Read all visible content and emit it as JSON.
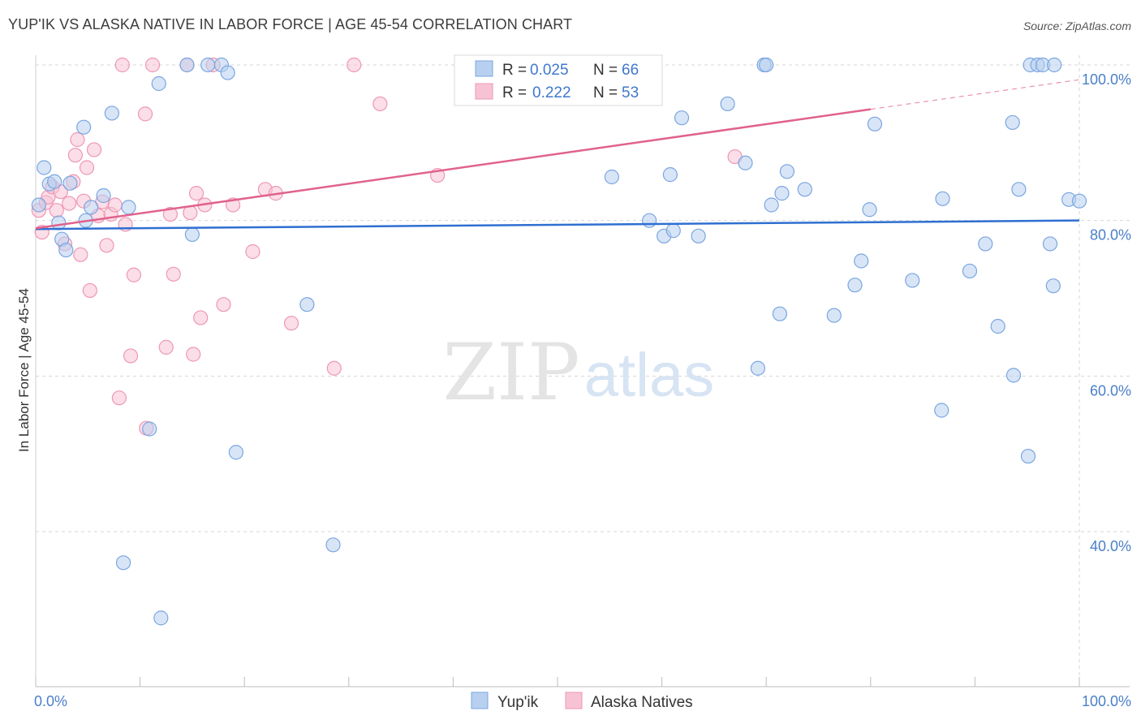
{
  "title": "YUP'IK VS ALASKA NATIVE IN LABOR FORCE | AGE 45-54 CORRELATION CHART",
  "source": "Source: ZipAtlas.com",
  "watermark": {
    "zip": "ZIP",
    "atlas": "atlas"
  },
  "colors": {
    "blue_fill": "#b8d0f0",
    "blue_stroke": "#7aa6e0",
    "blue_line": "#2f6fd1",
    "pink_fill": "#f7c3d4",
    "pink_stroke": "#ee97b3",
    "pink_line": "#e0628e",
    "grid": "#d6d6d6",
    "tick_text": "#4a7fc9"
  },
  "legend": {
    "rows": [
      {
        "r_label": "R =",
        "r_value": "0.025",
        "n_label": "N =",
        "n_value": "66"
      },
      {
        "r_label": "R =",
        "r_value": "0.222",
        "n_label": "N =",
        "n_value": "53"
      }
    ]
  },
  "bottom_legend": [
    "Yup'ik",
    "Alaska Natives"
  ],
  "chart_data": {
    "type": "scatter",
    "title": "YUP'IK VS ALASKA NATIVE IN LABOR FORCE | AGE 45-54 CORRELATION CHART",
    "xlabel": "",
    "ylabel": "In Labor Force | Age 45-54",
    "xlim": [
      0,
      105
    ],
    "ylim": [
      20,
      102.5
    ],
    "x_tick_labels": [
      "0.0%",
      "100.0%"
    ],
    "y_ticks": [
      40,
      60,
      80,
      100
    ],
    "y_tick_labels": [
      "40.0%",
      "60.0%",
      "80.0%",
      "100.0%"
    ],
    "grid": true,
    "legend_position": "top-center",
    "series": [
      {
        "name": "Yup'ik",
        "r": 0.025,
        "n": 66,
        "trend": {
          "x": [
            0,
            100
          ],
          "y": [
            78.9,
            80.0
          ]
        },
        "points": [
          [
            0.3,
            82.0
          ],
          [
            0.8,
            86.8
          ],
          [
            1.3,
            84.7
          ],
          [
            1.8,
            85.0
          ],
          [
            2.2,
            79.7
          ],
          [
            2.5,
            77.6
          ],
          [
            2.9,
            76.2
          ],
          [
            3.3,
            84.8
          ],
          [
            4.6,
            92.0
          ],
          [
            4.8,
            80.0
          ],
          [
            5.3,
            81.7
          ],
          [
            6.5,
            83.2
          ],
          [
            7.3,
            93.8
          ],
          [
            8.4,
            36.0
          ],
          [
            8.9,
            81.7
          ],
          [
            10.9,
            53.2
          ],
          [
            11.8,
            97.6
          ],
          [
            12.0,
            28.9
          ],
          [
            14.5,
            100.0
          ],
          [
            15.0,
            78.2
          ],
          [
            16.5,
            100.0
          ],
          [
            17.8,
            100.0
          ],
          [
            18.4,
            99.0
          ],
          [
            19.2,
            50.2
          ],
          [
            26.0,
            69.2
          ],
          [
            28.5,
            38.3
          ],
          [
            55.2,
            85.6
          ],
          [
            58.8,
            80.0
          ],
          [
            60.2,
            78.0
          ],
          [
            60.8,
            85.9
          ],
          [
            61.1,
            78.7
          ],
          [
            61.9,
            93.2
          ],
          [
            63.5,
            78.0
          ],
          [
            66.3,
            95.0
          ],
          [
            68.0,
            87.4
          ],
          [
            69.2,
            61.0
          ],
          [
            69.8,
            100.0
          ],
          [
            70.5,
            82.0
          ],
          [
            71.3,
            68.0
          ],
          [
            71.5,
            83.5
          ],
          [
            72.0,
            86.3
          ],
          [
            73.7,
            84.0
          ],
          [
            76.5,
            67.8
          ],
          [
            78.5,
            71.7
          ],
          [
            79.1,
            74.8
          ],
          [
            79.9,
            81.4
          ],
          [
            80.4,
            92.4
          ],
          [
            84.0,
            72.3
          ],
          [
            86.8,
            55.6
          ],
          [
            86.9,
            82.8
          ],
          [
            89.5,
            73.5
          ],
          [
            91.0,
            77.0
          ],
          [
            92.2,
            66.4
          ],
          [
            93.6,
            92.6
          ],
          [
            93.7,
            60.1
          ],
          [
            94.2,
            84.0
          ],
          [
            95.1,
            49.7
          ],
          [
            95.3,
            100.0
          ],
          [
            96.0,
            100.0
          ],
          [
            96.5,
            100.0
          ],
          [
            97.2,
            77.0
          ],
          [
            97.5,
            71.6
          ],
          [
            97.6,
            100.0
          ],
          [
            99.0,
            82.7
          ],
          [
            100.0,
            82.5
          ],
          [
            70.0,
            100.0
          ]
        ]
      },
      {
        "name": "Alaska Natives",
        "r": 0.222,
        "n": 53,
        "trend": {
          "x": [
            0,
            80
          ],
          "y": [
            79.0,
            94.3
          ]
        },
        "trend_dashed": {
          "x": [
            80,
            100
          ],
          "y": [
            94.3,
            98.1
          ]
        },
        "points": [
          [
            0.3,
            81.3
          ],
          [
            0.6,
            78.5
          ],
          [
            1.0,
            82.3
          ],
          [
            1.2,
            83.0
          ],
          [
            1.6,
            84.3
          ],
          [
            2.0,
            81.3
          ],
          [
            2.4,
            83.7
          ],
          [
            2.8,
            77.0
          ],
          [
            3.2,
            82.2
          ],
          [
            3.6,
            85.0
          ],
          [
            3.8,
            88.4
          ],
          [
            4.0,
            90.4
          ],
          [
            4.3,
            75.6
          ],
          [
            4.6,
            82.5
          ],
          [
            4.9,
            86.8
          ],
          [
            5.2,
            71.0
          ],
          [
            5.6,
            89.1
          ],
          [
            6.0,
            80.6
          ],
          [
            6.4,
            82.4
          ],
          [
            6.8,
            76.8
          ],
          [
            7.2,
            80.8
          ],
          [
            7.6,
            82.0
          ],
          [
            8.0,
            57.2
          ],
          [
            8.3,
            100.0
          ],
          [
            8.6,
            79.5
          ],
          [
            9.1,
            62.6
          ],
          [
            9.4,
            73.0
          ],
          [
            10.5,
            93.7
          ],
          [
            10.6,
            53.3
          ],
          [
            11.2,
            100.0
          ],
          [
            12.5,
            63.7
          ],
          [
            12.9,
            80.8
          ],
          [
            13.2,
            73.1
          ],
          [
            14.5,
            100.0
          ],
          [
            14.8,
            81.0
          ],
          [
            15.1,
            62.8
          ],
          [
            15.4,
            83.5
          ],
          [
            15.8,
            67.5
          ],
          [
            16.2,
            82.0
          ],
          [
            17.0,
            100.0
          ],
          [
            18.0,
            69.2
          ],
          [
            18.9,
            82.0
          ],
          [
            20.8,
            76.0
          ],
          [
            22.0,
            84.0
          ],
          [
            23.0,
            83.5
          ],
          [
            24.5,
            66.8
          ],
          [
            28.6,
            61.0
          ],
          [
            30.5,
            100.0
          ],
          [
            33.0,
            95.0
          ],
          [
            38.5,
            85.8
          ],
          [
            45.0,
            100.0
          ],
          [
            67.0,
            88.2
          ],
          [
            45.5,
            100.0
          ]
        ]
      }
    ]
  }
}
